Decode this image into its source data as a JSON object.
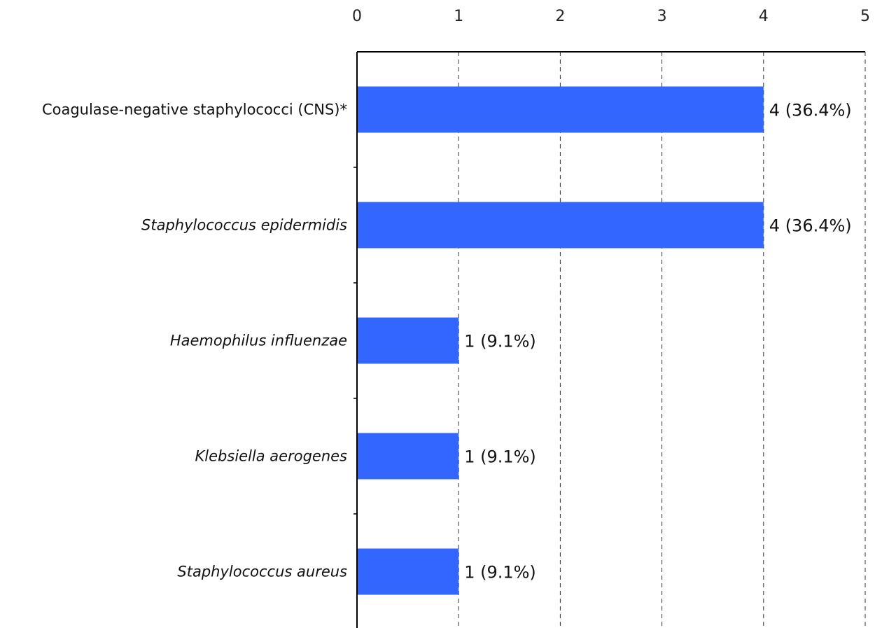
{
  "chart_data": {
    "type": "bar",
    "orientation": "horizontal",
    "title": "",
    "xlabel": "",
    "ylabel": "",
    "x_axis_position": "top",
    "xlim": [
      0,
      5
    ],
    "x_ticks": [
      "0",
      "1",
      "2",
      "3",
      "4",
      "5"
    ],
    "grid": "vertical dashed",
    "legend": "none",
    "bar_color": "#3366ff",
    "categories": [
      {
        "label": "Coagulase-negative staphylococci (CNS)*",
        "italic": false
      },
      {
        "label": "Staphylococcus epidermidis",
        "italic": true
      },
      {
        "label": "Haemophilus influenzae",
        "italic": true
      },
      {
        "label": "Klebsiella aerogenes",
        "italic": true
      },
      {
        "label": "Staphylococcus aureus",
        "italic": true
      }
    ],
    "values": [
      4,
      4,
      1,
      1,
      1
    ],
    "data_labels": [
      "4 (36.4%)",
      "4 (36.4%)",
      "1 (9.1%)",
      "1 (9.1%)",
      "1 (9.1%)"
    ]
  }
}
